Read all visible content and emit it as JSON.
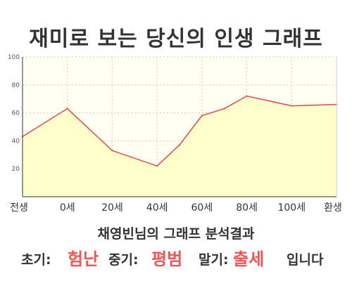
{
  "title": "재미로 보는 당신의 인생 그래프",
  "chart_data": {
    "type": "area",
    "x": [
      "전생",
      "0세",
      "20세",
      "40세",
      "60세",
      "80세",
      "100세",
      "환생"
    ],
    "points": [
      {
        "x": 0,
        "y": 43
      },
      {
        "x": 1,
        "y": 63
      },
      {
        "x": 2,
        "y": 33
      },
      {
        "x": 3,
        "y": 22
      },
      {
        "x": 3.5,
        "y": 37
      },
      {
        "x": 4,
        "y": 58
      },
      {
        "x": 4.5,
        "y": 63
      },
      {
        "x": 5,
        "y": 72
      },
      {
        "x": 6,
        "y": 65
      },
      {
        "x": 7,
        "y": 66
      }
    ],
    "yticks": [
      20,
      40,
      60,
      80,
      100
    ],
    "ylim": [
      0,
      100
    ],
    "grid": true,
    "fill_color": "#ffffcc",
    "line_color": "#dd5555"
  },
  "result": {
    "heading": "채영빈님의 그래프 분석결과",
    "early_label": "초기:",
    "early_value": "험난",
    "middle_label": "중기:",
    "middle_value": "평범",
    "late_label": "말기:",
    "late_value": "출세",
    "suffix": "입니다"
  }
}
